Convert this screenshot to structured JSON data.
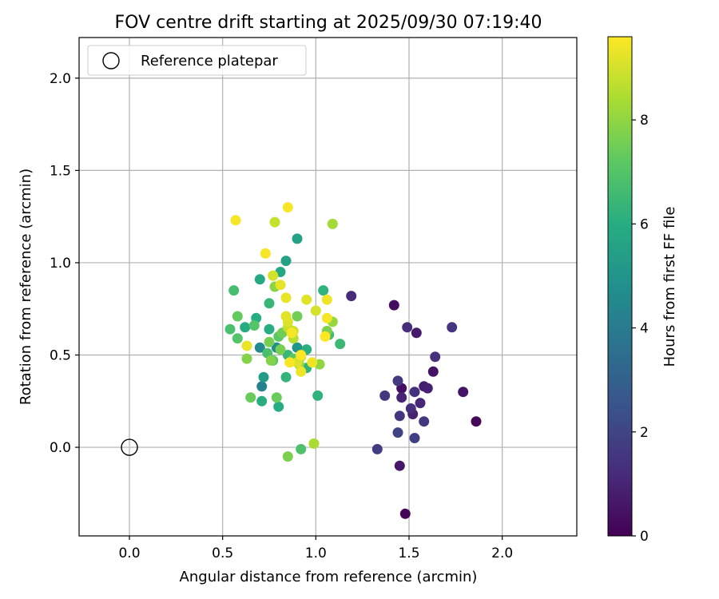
{
  "chart_data": {
    "type": "scatter",
    "title": "FOV centre drift starting at 2025/09/30 07:19:40",
    "xlabel": "Angular distance from reference (arcmin)",
    "ylabel": "Rotation from reference (arcmin)",
    "xlim": [
      -0.27,
      2.4
    ],
    "ylim": [
      -0.48,
      2.22
    ],
    "xticks": [
      0.0,
      0.5,
      1.0,
      1.5,
      2.0
    ],
    "xtick_labels": [
      "0.0",
      "0.5",
      "1.0",
      "1.5",
      "2.0"
    ],
    "yticks": [
      0.0,
      0.5,
      1.0,
      1.5,
      2.0
    ],
    "ytick_labels": [
      "0.0",
      "0.5",
      "1.0",
      "1.5",
      "2.0"
    ],
    "grid": true,
    "legend": {
      "position": "top-left",
      "entries": [
        "Reference platepar"
      ]
    },
    "reference_point": {
      "x": 0.0,
      "y": 0.0,
      "label": "Reference platepar"
    },
    "colorbar": {
      "label": "Hours from first FF file",
      "colormap": "viridis",
      "range": [
        0,
        9.6
      ],
      "ticks": [
        0,
        2,
        4,
        6,
        8
      ],
      "tick_labels": [
        "0",
        "2",
        "4",
        "6",
        "8"
      ]
    },
    "series": [
      {
        "name": "FOV centre",
        "points": [
          {
            "x": 1.48,
            "y": -0.36,
            "c": 0.1
          },
          {
            "x": 1.86,
            "y": 0.14,
            "c": 0.2
          },
          {
            "x": 1.42,
            "y": 0.77,
            "c": 0.3
          },
          {
            "x": 1.46,
            "y": 0.32,
            "c": 0.4
          },
          {
            "x": 1.63,
            "y": 0.41,
            "c": 0.5
          },
          {
            "x": 1.79,
            "y": 0.3,
            "c": 0.55
          },
          {
            "x": 1.45,
            "y": -0.1,
            "c": 0.6
          },
          {
            "x": 1.54,
            "y": 0.62,
            "c": 0.7
          },
          {
            "x": 1.58,
            "y": 0.33,
            "c": 0.8
          },
          {
            "x": 1.6,
            "y": 0.32,
            "c": 0.9
          },
          {
            "x": 1.52,
            "y": 0.18,
            "c": 0.95
          },
          {
            "x": 1.46,
            "y": 0.27,
            "c": 1.0
          },
          {
            "x": 1.56,
            "y": 0.24,
            "c": 1.1
          },
          {
            "x": 1.19,
            "y": 0.82,
            "c": 1.2
          },
          {
            "x": 1.49,
            "y": 0.65,
            "c": 1.25
          },
          {
            "x": 1.51,
            "y": 0.21,
            "c": 1.3
          },
          {
            "x": 1.64,
            "y": 0.49,
            "c": 1.35
          },
          {
            "x": 1.53,
            "y": 0.3,
            "c": 1.4
          },
          {
            "x": 1.45,
            "y": 0.17,
            "c": 1.45
          },
          {
            "x": 1.73,
            "y": 0.65,
            "c": 1.5
          },
          {
            "x": 1.37,
            "y": 0.28,
            "c": 1.55
          },
          {
            "x": 1.58,
            "y": 0.14,
            "c": 1.6
          },
          {
            "x": 1.44,
            "y": 0.36,
            "c": 1.65
          },
          {
            "x": 1.33,
            "y": -0.01,
            "c": 1.75
          },
          {
            "x": 1.53,
            "y": 0.05,
            "c": 1.85
          },
          {
            "x": 1.44,
            "y": 0.08,
            "c": 1.9
          },
          {
            "x": 0.71,
            "y": 0.33,
            "c": 4.2
          },
          {
            "x": 0.7,
            "y": 0.54,
            "c": 4.6
          },
          {
            "x": 0.79,
            "y": 0.54,
            "c": 4.7
          },
          {
            "x": 0.9,
            "y": 0.54,
            "c": 5.0
          },
          {
            "x": 0.72,
            "y": 0.38,
            "c": 5.3
          },
          {
            "x": 0.9,
            "y": 1.13,
            "c": 5.5
          },
          {
            "x": 0.84,
            "y": 1.01,
            "c": 5.5
          },
          {
            "x": 0.81,
            "y": 0.95,
            "c": 5.8
          },
          {
            "x": 0.7,
            "y": 0.91,
            "c": 5.8
          },
          {
            "x": 0.8,
            "y": 0.22,
            "c": 5.9
          },
          {
            "x": 0.62,
            "y": 0.65,
            "c": 5.9
          },
          {
            "x": 0.75,
            "y": 0.64,
            "c": 6.0
          },
          {
            "x": 0.68,
            "y": 0.7,
            "c": 6.0
          },
          {
            "x": 0.71,
            "y": 0.25,
            "c": 6.0
          },
          {
            "x": 0.95,
            "y": 0.53,
            "c": 6.1
          },
          {
            "x": 1.04,
            "y": 0.85,
            "c": 6.2
          },
          {
            "x": 1.01,
            "y": 0.28,
            "c": 6.2
          },
          {
            "x": 0.95,
            "y": 0.43,
            "c": 6.2
          },
          {
            "x": 0.84,
            "y": 0.38,
            "c": 6.3
          },
          {
            "x": 0.75,
            "y": 0.78,
            "c": 6.4
          },
          {
            "x": 0.85,
            "y": 0.5,
            "c": 6.4
          },
          {
            "x": 1.13,
            "y": 0.56,
            "c": 6.5
          },
          {
            "x": 1.07,
            "y": 0.61,
            "c": 6.6
          },
          {
            "x": 0.56,
            "y": 0.85,
            "c": 6.7
          },
          {
            "x": 0.54,
            "y": 0.64,
            "c": 6.8
          },
          {
            "x": 0.74,
            "y": 0.51,
            "c": 6.8
          },
          {
            "x": 0.92,
            "y": -0.01,
            "c": 6.9
          },
          {
            "x": 0.58,
            "y": 0.59,
            "c": 7.0
          },
          {
            "x": 0.67,
            "y": 0.66,
            "c": 7.0
          },
          {
            "x": 0.77,
            "y": 0.47,
            "c": 7.1
          },
          {
            "x": 0.88,
            "y": 0.48,
            "c": 7.2
          },
          {
            "x": 0.8,
            "y": 0.6,
            "c": 7.2
          },
          {
            "x": 0.58,
            "y": 0.71,
            "c": 7.3
          },
          {
            "x": 0.65,
            "y": 0.27,
            "c": 7.4
          },
          {
            "x": 0.79,
            "y": 0.27,
            "c": 7.4
          },
          {
            "x": 0.9,
            "y": 0.71,
            "c": 7.5
          },
          {
            "x": 0.82,
            "y": 0.62,
            "c": 7.5
          },
          {
            "x": 0.75,
            "y": 0.57,
            "c": 7.6
          },
          {
            "x": 0.81,
            "y": 0.53,
            "c": 7.6
          },
          {
            "x": 0.85,
            "y": -0.05,
            "c": 7.7
          },
          {
            "x": 1.06,
            "y": 0.63,
            "c": 7.7
          },
          {
            "x": 0.63,
            "y": 0.48,
            "c": 7.8
          },
          {
            "x": 0.76,
            "y": 0.47,
            "c": 7.8
          },
          {
            "x": 0.78,
            "y": 0.87,
            "c": 7.9
          },
          {
            "x": 1.02,
            "y": 0.45,
            "c": 8.0
          },
          {
            "x": 0.91,
            "y": 0.45,
            "c": 8.1
          },
          {
            "x": 1.09,
            "y": 0.68,
            "c": 8.1
          },
          {
            "x": 1.09,
            "y": 1.21,
            "c": 8.3
          },
          {
            "x": 0.99,
            "y": 0.02,
            "c": 8.4
          },
          {
            "x": 0.88,
            "y": 0.59,
            "c": 8.6
          },
          {
            "x": 0.92,
            "y": 0.49,
            "c": 8.7
          },
          {
            "x": 0.85,
            "y": 0.65,
            "c": 8.8
          },
          {
            "x": 0.78,
            "y": 1.22,
            "c": 8.8
          },
          {
            "x": 0.88,
            "y": 0.63,
            "c": 8.9
          },
          {
            "x": 1.0,
            "y": 0.74,
            "c": 9.0
          },
          {
            "x": 0.77,
            "y": 0.93,
            "c": 9.0
          },
          {
            "x": 0.85,
            "y": 0.68,
            "c": 9.1
          },
          {
            "x": 0.9,
            "y": 0.46,
            "c": 9.1
          },
          {
            "x": 0.84,
            "y": 0.71,
            "c": 9.2
          },
          {
            "x": 0.95,
            "y": 0.8,
            "c": 9.2
          },
          {
            "x": 0.81,
            "y": 0.88,
            "c": 9.3
          },
          {
            "x": 0.84,
            "y": 0.81,
            "c": 9.3
          },
          {
            "x": 0.63,
            "y": 0.55,
            "c": 9.3
          },
          {
            "x": 1.06,
            "y": 0.8,
            "c": 9.4
          },
          {
            "x": 0.98,
            "y": 0.46,
            "c": 9.4
          },
          {
            "x": 0.92,
            "y": 0.41,
            "c": 9.4
          },
          {
            "x": 0.86,
            "y": 0.46,
            "c": 9.5
          },
          {
            "x": 0.57,
            "y": 1.23,
            "c": 9.5
          },
          {
            "x": 0.85,
            "y": 1.3,
            "c": 9.5
          },
          {
            "x": 0.73,
            "y": 1.05,
            "c": 9.5
          },
          {
            "x": 1.06,
            "y": 0.7,
            "c": 9.5
          },
          {
            "x": 0.87,
            "y": 0.62,
            "c": 9.5
          },
          {
            "x": 1.05,
            "y": 0.6,
            "c": 9.6
          },
          {
            "x": 0.92,
            "y": 0.5,
            "c": 9.6
          }
        ]
      }
    ]
  }
}
